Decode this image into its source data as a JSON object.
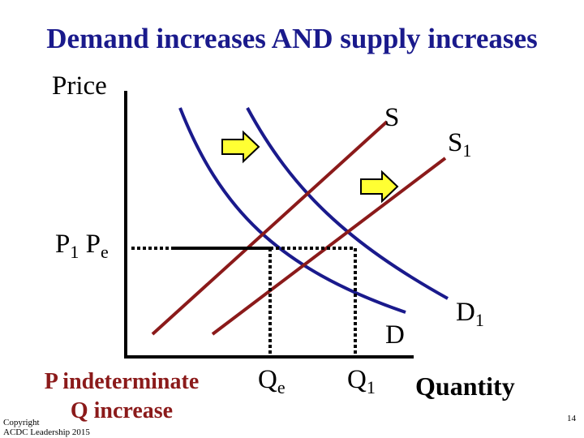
{
  "title": "Demand increases AND supply increases",
  "axis": {
    "y_label": "Price",
    "x_label": "Quantity"
  },
  "curves": {
    "supply": {
      "label": "S",
      "color": "#8b1a1a"
    },
    "supply_new": {
      "label": "S",
      "sub": "1",
      "color": "#8b1a1a"
    },
    "demand": {
      "label": "D",
      "color": "#1a1a8c"
    },
    "demand_new": {
      "label": "D",
      "sub": "1",
      "color": "#1a1a8c"
    }
  },
  "price_labels": {
    "p1": "P",
    "p1_sub": "1",
    "pe": "P",
    "pe_sub": "e"
  },
  "quantity_labels": {
    "qe": "Q",
    "qe_sub": "e",
    "q1": "Q",
    "q1_sub": "1"
  },
  "arrows": {
    "color": "#ffff33",
    "icon": "right-arrow-icon"
  },
  "conclusion": {
    "line1": "P indeterminate",
    "line2": "Q increase"
  },
  "footer": {
    "copyright": "Copyright",
    "org": "ACDC Leadership 2015",
    "page": "14"
  }
}
